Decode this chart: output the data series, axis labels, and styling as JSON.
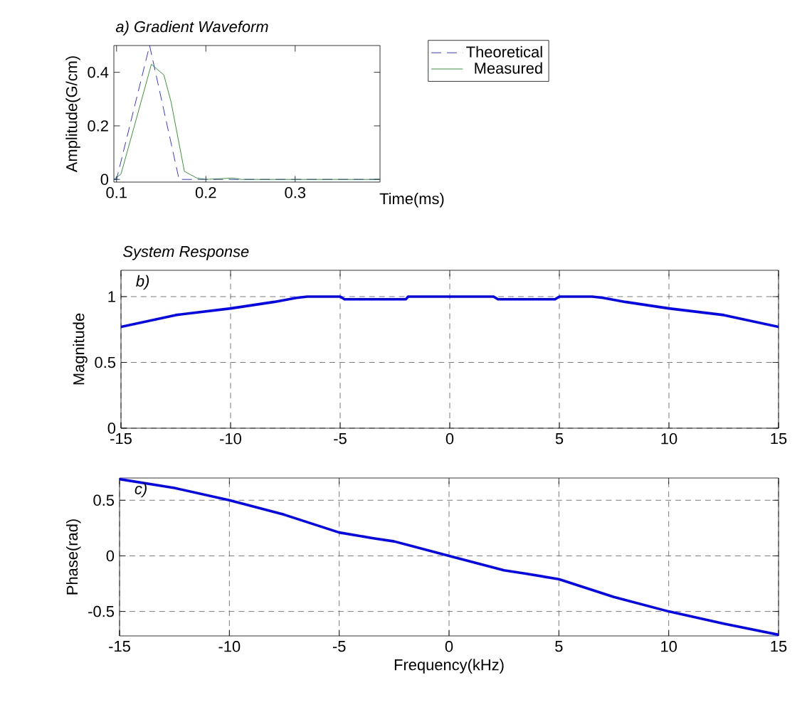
{
  "chart_data": [
    {
      "type": "line",
      "title": "a) Gradient Waveform",
      "xlabel": "Time(ms)",
      "ylabel": "Amplitude(G/cm)",
      "xlim": [
        0.097,
        0.395
      ],
      "ylim": [
        -0.01,
        0.5
      ],
      "xticks": [
        0.1,
        0.2,
        0.3
      ],
      "yticks": [
        0,
        0.2,
        0.4
      ],
      "grid": false,
      "legend": "right",
      "series": [
        {
          "name": "Theoretical",
          "color": "#0000ff",
          "line_style": "dashed",
          "x": [
            0.097,
            0.1,
            0.137,
            0.17,
            0.395
          ],
          "values": [
            0,
            0,
            0.5,
            0,
            0
          ]
        },
        {
          "name": "Measured",
          "color": "#008000",
          "line_style": "solid",
          "x": [
            0.097,
            0.105,
            0.12,
            0.139,
            0.153,
            0.161,
            0.176,
            0.19,
            0.2,
            0.23,
            0.24,
            0.395
          ],
          "values": [
            0,
            0.02,
            0.2,
            0.43,
            0.39,
            0.29,
            0.03,
            0.005,
            0,
            0.005,
            0,
            0
          ]
        }
      ]
    },
    {
      "type": "line",
      "title": "System Response",
      "ylabel": "Magnitude",
      "annotations": [
        "b)"
      ],
      "xlim": [
        -15,
        15
      ],
      "ylim": [
        0,
        1.2
      ],
      "xticks": [
        -15,
        -10,
        -5,
        0,
        5,
        10,
        15
      ],
      "yticks": [
        0,
        0.5,
        1
      ],
      "grid": true,
      "series": [
        {
          "color": "#0000ff",
          "line_style": "solid",
          "x": [
            -15,
            -12.5,
            -10,
            -8,
            -7,
            -6.5,
            -5,
            -4.8,
            -2,
            -1.9,
            0,
            2,
            2.2,
            4.8,
            5,
            6.5,
            7,
            8,
            10,
            12.5,
            15
          ],
          "values": [
            0.77,
            0.86,
            0.91,
            0.96,
            0.99,
            1.0,
            1.0,
            0.98,
            0.98,
            1.0,
            1.0,
            1.0,
            0.98,
            0.98,
            1.0,
            1.0,
            0.99,
            0.96,
            0.91,
            0.86,
            0.77
          ]
        }
      ]
    },
    {
      "type": "line",
      "xlabel": "Frequency(kHz)",
      "ylabel": "Phase(rad)",
      "annotations": [
        "c)"
      ],
      "xlim": [
        -15,
        15
      ],
      "ylim": [
        -0.72,
        0.7
      ],
      "xticks": [
        -15,
        -10,
        -5,
        0,
        5,
        10,
        15
      ],
      "yticks": [
        -0.5,
        0,
        0.5
      ],
      "grid": true,
      "series": [
        {
          "color": "#0000ff",
          "line_style": "solid",
          "x": [
            -15,
            -12.5,
            -10,
            -7.5,
            -5,
            -3.5,
            -2.5,
            0,
            2.5,
            3.5,
            5,
            7.5,
            10,
            12.5,
            15
          ],
          "values": [
            0.69,
            0.61,
            0.5,
            0.37,
            0.21,
            0.16,
            0.13,
            0,
            -0.13,
            -0.16,
            -0.21,
            -0.37,
            -0.5,
            -0.61,
            -0.71
          ]
        }
      ]
    }
  ]
}
